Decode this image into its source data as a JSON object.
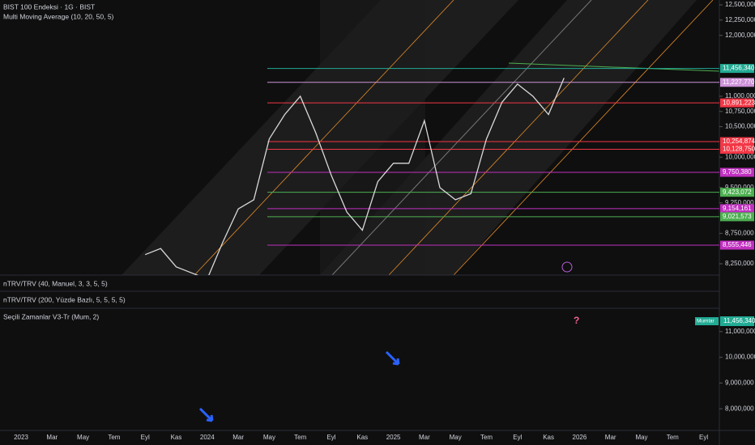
{
  "header": {
    "title": "BIST 100 Endeksi · 1G · BIST",
    "indicator": "Multi Moving Average (10, 20, 50, 5)"
  },
  "price_pane": {
    "type": "line",
    "color": "#d9d9d9",
    "x": [
      "2023-09",
      "2023-10",
      "2023-11",
      "2023-12",
      "2024-01",
      "2024-02",
      "2024-03",
      "2024-04",
      "2024-05",
      "2024-06",
      "2024-07",
      "2024-08",
      "2024-09",
      "2024-10",
      "2024-11",
      "2024-12",
      "2025-01",
      "2025-02",
      "2025-03",
      "2025-04",
      "2025-05",
      "2025-06",
      "2025-07",
      "2025-08",
      "2025-09",
      "2025-10",
      "2025-11",
      "2025-12"
    ],
    "values": [
      8400000,
      8500000,
      8200000,
      8100000,
      8000000,
      8600000,
      9150000,
      9300000,
      10300000,
      10700000,
      11000000,
      10400000,
      9700000,
      9100000,
      8800000,
      9600000,
      9900000,
      9900000,
      10600000,
      9500000,
      9300000,
      9400000,
      10300000,
      10900000,
      11200000,
      11000000,
      10700000,
      11300000
    ],
    "ylim": [
      8064000,
      12580000
    ],
    "yticks": [
      {
        "value": 12500000,
        "label": "12,500,000"
      },
      {
        "value": 12250000,
        "label": "12,250,000"
      },
      {
        "value": 12000000,
        "label": "12,000,000"
      },
      {
        "value": 11000000,
        "label": "11,000,000"
      },
      {
        "value": 10750000,
        "label": "10,750,000"
      },
      {
        "value": 10500000,
        "label": "10,500,000"
      },
      {
        "value": 10000000,
        "label": "10,000,000"
      },
      {
        "value": 9500000,
        "label": "9,500,000"
      },
      {
        "value": 9250000,
        "label": "9,250,000"
      },
      {
        "value": 8750000,
        "label": "8,750,000"
      },
      {
        "value": 8250000,
        "label": "8,250,000"
      }
    ],
    "levels": [
      {
        "value": 11456340,
        "label": "11,456,340",
        "color": "#22ab94"
      },
      {
        "value": 11227770,
        "label": "11,227,770",
        "color": "#ce93d8"
      },
      {
        "value": 10891223,
        "label": "10,891,223",
        "color": "#f23645"
      },
      {
        "value": 10254874,
        "label": "10,254,874",
        "color": "#f23645"
      },
      {
        "value": 10128750,
        "label": "10,128,750",
        "color": "#f23645"
      },
      {
        "value": 9750380,
        "label": "9,750,380",
        "color": "#c030c0"
      },
      {
        "value": 9423072,
        "label": "9,423,072",
        "color": "#4caf50"
      },
      {
        "value": 9154161,
        "label": "9,154,161",
        "color": "#c030c0"
      },
      {
        "value": 9021573,
        "label": "9,021,573",
        "color": "#4caf50"
      },
      {
        "value": 8555446,
        "label": "8,555,446",
        "color": "#c030c0"
      }
    ]
  },
  "panes": [
    "nTRV/TRV (40, Manuel, 3, 3, 5, 5)",
    "nTRV/TRV (200, Yüzde Bazlı, 5, 5, 5, 5)"
  ],
  "lower_pane": {
    "title": "Seçili Zamanlar V3-Tr (Mum, 2)",
    "badge": "Mumlar",
    "last_label": "11,456,340",
    "ylim": [
      7218750,
      11781250
    ],
    "yticks": [
      {
        "value": 11000000,
        "label": "11,000,000"
      },
      {
        "value": 10000000,
        "label": "10,000,000"
      },
      {
        "value": 9000000,
        "label": "9,000,000"
      },
      {
        "value": 8000000,
        "label": "8,000,000"
      }
    ]
  },
  "time_axis": {
    "labels": [
      "2023",
      "Mar",
      "May",
      "Tem",
      "Eyl",
      "Kas",
      "2024",
      "Mar",
      "May",
      "Tem",
      "Eyl",
      "Kas",
      "2025",
      "Mar",
      "May",
      "Tem",
      "Eyl",
      "Kas",
      "2026",
      "Mar",
      "May",
      "Tem",
      "Eyl"
    ]
  }
}
